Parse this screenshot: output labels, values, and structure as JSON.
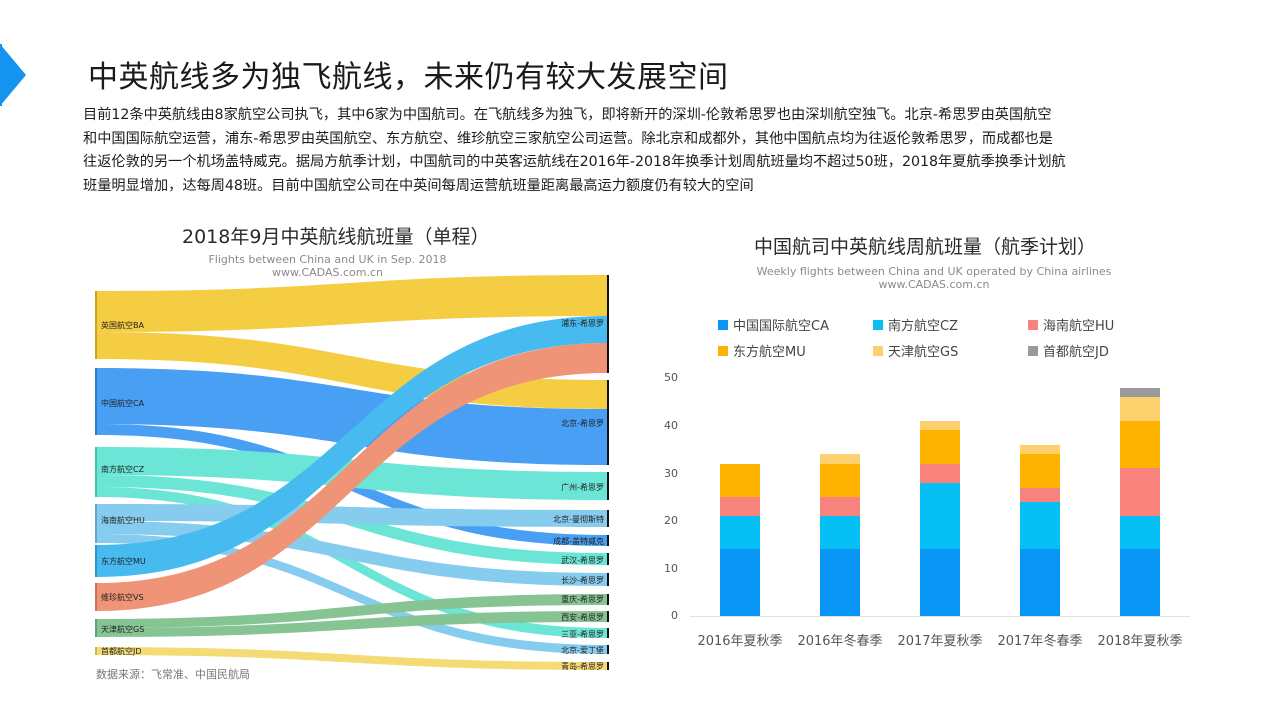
{
  "header": {
    "title": "中英航线多为独飞航线，未来仍有较大发展空间",
    "accent_color": "#1493f0"
  },
  "intro": {
    "lines": [
      "目前12条中英航线由8家航空公司执飞，其中6家为中国航司。在飞航线多为独飞，即将新开的深圳-伦敦希思罗也由深圳航空独飞。北京-希思罗由英国航空",
      "和中国国际航空运营，浦东-希思罗由英国航空、东方航空、维珍航空三家航空公司运营。除北京和成都外，其他中国航点均为往返伦敦希思罗，而成都也是",
      "往返伦敦的另一个机场盖特威克。据局方航季计划，中国航司的中英客运航线在2016年-2018年换季计划周航班量均不超过50班，2018年夏航季换季计划航",
      "班量明显增加，达每周48班。目前中国航空公司在中英间每周运营航班量距离最高运力额度仍有较大的空间"
    ]
  },
  "sankey": {
    "title": "2018年9月中英航线航班量（单程）",
    "subtitle": "Flights between China and UK in Sep. 2018",
    "source_site": "www.CADAS.com.cn",
    "source_note": "数据来源：飞常准、中国民航局",
    "left_nodes": [
      {
        "label": "英国航空BA",
        "color": "#f5c934"
      },
      {
        "label": "中国航空CA",
        "color": "#3a97f2"
      },
      {
        "label": "南方航空CZ",
        "color": "#5fe3d2"
      },
      {
        "label": "海南航空HU",
        "color": "#7cc8ee"
      },
      {
        "label": "东方航空MU",
        "color": "#38b6ee"
      },
      {
        "label": "维珍航空VS",
        "color": "#ee8c6c"
      },
      {
        "label": "天津航空GS",
        "color": "#7cc08a"
      },
      {
        "label": "首都航空JD",
        "color": "#f4d96a"
      }
    ],
    "right_nodes": [
      {
        "label": "浦东-希思罗"
      },
      {
        "label": "北京-希思罗"
      },
      {
        "label": "广州-希思罗"
      },
      {
        "label": "北京-曼彻斯特"
      },
      {
        "label": "成都-盖特威克"
      },
      {
        "label": "武汉-希思罗"
      },
      {
        "label": "长沙-希思罗"
      },
      {
        "label": "重庆-希思罗"
      },
      {
        "label": "西安-希思罗"
      },
      {
        "label": "三亚-希思罗"
      },
      {
        "label": "北京-爱丁堡"
      },
      {
        "label": "青岛-希思罗"
      }
    ],
    "links": [
      {
        "source": "英国航空BA",
        "target": "浦东-希思罗"
      },
      {
        "source": "英国航空BA",
        "target": "北京-希思罗"
      },
      {
        "source": "中国航空CA",
        "target": "北京-希思罗"
      },
      {
        "source": "中国航空CA",
        "target": "成都-盖特威克"
      },
      {
        "source": "南方航空CZ",
        "target": "广州-希思罗"
      },
      {
        "source": "南方航空CZ",
        "target": "武汉-希思罗"
      },
      {
        "source": "南方航空CZ",
        "target": "三亚-希思罗"
      },
      {
        "source": "海南航空HU",
        "target": "北京-曼彻斯特"
      },
      {
        "source": "海南航空HU",
        "target": "长沙-希思罗"
      },
      {
        "source": "海南航空HU",
        "target": "北京-爱丁堡"
      },
      {
        "source": "东方航空MU",
        "target": "浦东-希思罗"
      },
      {
        "source": "维珍航空VS",
        "target": "浦东-希思罗"
      },
      {
        "source": "天津航空GS",
        "target": "重庆-希思罗"
      },
      {
        "source": "天津航空GS",
        "target": "西安-希思罗"
      },
      {
        "source": "首都航空JD",
        "target": "青岛-希思罗"
      }
    ]
  },
  "bar_chart": {
    "title": "中国航司中英航线周航班量（航季计划）",
    "subtitle": "Weekly flights between China and UK operated by China airlines",
    "source_site": "www.CADAS.com.cn",
    "legend": [
      {
        "label": "中国国际航空CA",
        "color": "#0895f5"
      },
      {
        "label": "南方航空CZ",
        "color": "#05bff5"
      },
      {
        "label": "海南航空HU",
        "color": "#f7837c"
      },
      {
        "label": "东方航空MU",
        "color": "#fdb100"
      },
      {
        "label": "天津航空GS",
        "color": "#fdd06e"
      },
      {
        "label": "首都航空JD",
        "color": "#9a9a9a"
      }
    ],
    "y_ticks": [
      "0",
      "10",
      "20",
      "30",
      "40",
      "50"
    ],
    "x_ticks": [
      "2016年夏秋季",
      "2016年冬春季",
      "2017年夏秋季",
      "2017年冬春季",
      "2018年夏秋季"
    ]
  },
  "chart_data": [
    {
      "type": "sankey",
      "title": "2018年9月中英航线航班量（单程）",
      "subtitle": "Flights between China and UK in Sep. 2018",
      "sources": [
        "英国航空BA",
        "中国航空CA",
        "南方航空CZ",
        "海南航空HU",
        "东方航空MU",
        "维珍航空VS",
        "天津航空GS",
        "首都航空JD"
      ],
      "targets": [
        "浦东-希思罗",
        "北京-希思罗",
        "广州-希思罗",
        "北京-曼彻斯特",
        "成都-盖特威克",
        "武汉-希思罗",
        "长沙-希思罗",
        "重庆-希思罗",
        "西安-希思罗",
        "三亚-希思罗",
        "北京-爱丁堡",
        "青岛-希思罗"
      ],
      "links": [
        {
          "source": "英国航空BA",
          "target": "浦东-希思罗",
          "relative_width": 41
        },
        {
          "source": "英国航空BA",
          "target": "北京-希思罗",
          "relative_width": 29
        },
        {
          "source": "中国航空CA",
          "target": "北京-希思罗",
          "relative_width": 56
        },
        {
          "source": "中国航空CA",
          "target": "成都-盖特威克",
          "relative_width": 11
        },
        {
          "source": "南方航空CZ",
          "target": "广州-希思罗",
          "relative_width": 28
        },
        {
          "source": "南方航空CZ",
          "target": "武汉-希思罗",
          "relative_width": 12
        },
        {
          "source": "南方航空CZ",
          "target": "三亚-希思罗",
          "relative_width": 10
        },
        {
          "source": "海南航空HU",
          "target": "北京-曼彻斯特",
          "relative_width": 17
        },
        {
          "source": "海南航空HU",
          "target": "长沙-希思罗",
          "relative_width": 13
        },
        {
          "source": "海南航空HU",
          "target": "北京-爱丁堡",
          "relative_width": 9
        },
        {
          "source": "东方航空MU",
          "target": "浦东-希思罗",
          "relative_width": 27
        },
        {
          "source": "维珍航空VS",
          "target": "浦东-希思罗",
          "relative_width": 30
        },
        {
          "source": "天津航空GS",
          "target": "重庆-希思罗",
          "relative_width": 11
        },
        {
          "source": "天津航空GS",
          "target": "西安-希思罗",
          "relative_width": 11
        },
        {
          "source": "首都航空JD",
          "target": "青岛-希思罗",
          "relative_width": 8
        }
      ],
      "source_note": "数据来源：飞常准、中国民航局"
    },
    {
      "type": "bar",
      "stacked": true,
      "title": "中国航司中英航线周航班量（航季计划）",
      "subtitle": "Weekly flights between China and UK operated by China airlines",
      "categories": [
        "2016年夏秋季",
        "2016年冬春季",
        "2017年夏秋季",
        "2017年冬春季",
        "2018年夏秋季"
      ],
      "series": [
        {
          "name": "中国国际航空CA",
          "color": "#0895f5",
          "values": [
            14,
            14,
            14,
            14,
            14
          ]
        },
        {
          "name": "南方航空CZ",
          "color": "#05bff5",
          "values": [
            7,
            7,
            14,
            10,
            7
          ]
        },
        {
          "name": "海南航空HU",
          "color": "#f7837c",
          "values": [
            4,
            4,
            4,
            3,
            10
          ]
        },
        {
          "name": "东方航空MU",
          "color": "#fdb100",
          "values": [
            7,
            7,
            7,
            7,
            10
          ]
        },
        {
          "name": "天津航空GS",
          "color": "#fdd06e",
          "values": [
            0,
            2,
            2,
            2,
            5
          ]
        },
        {
          "name": "首都航空JD",
          "color": "#9a9a9a",
          "values": [
            0,
            0,
            0,
            0,
            2
          ]
        }
      ],
      "totals": [
        32,
        34,
        41,
        36,
        48
      ],
      "xlabel": "",
      "ylabel": "",
      "ylim": [
        0,
        50
      ],
      "y_ticks": [
        0,
        10,
        20,
        30,
        40,
        50
      ],
      "grid": false,
      "legend_position": "top"
    }
  ]
}
